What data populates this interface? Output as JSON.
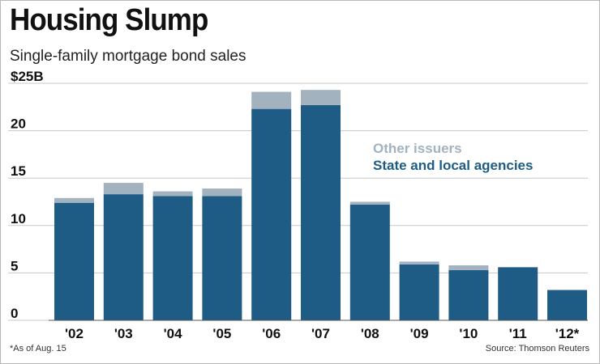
{
  "header": {
    "title": "Housing Slump",
    "subtitle": "Single-family mortgage bond sales"
  },
  "footer": {
    "footnote": "*As of Aug. 15",
    "source": "Source: Thomson Reuters"
  },
  "colors": {
    "state": "#1e5c86",
    "other": "#a2b2bf",
    "grid": "#c8c8c8",
    "text": "#111111"
  },
  "chart_data": {
    "type": "bar",
    "stacked": true,
    "title": "Housing Slump",
    "subtitle": "Single-family mortgage bond sales",
    "xlabel": "",
    "ylabel": "",
    "ylim": [
      0,
      25
    ],
    "yticks": [
      0,
      5,
      10,
      15,
      20,
      25
    ],
    "ytick_labels": [
      "0",
      "5",
      "10",
      "15",
      "20",
      "$25B"
    ],
    "grid": true,
    "legend_position": "center-right",
    "categories": [
      "'02",
      "'03",
      "'04",
      "'05",
      "'06",
      "'07",
      "'08",
      "'09",
      "'10",
      "'11",
      "'12*"
    ],
    "series": [
      {
        "name": "State and local agencies",
        "values": [
          12.4,
          13.3,
          13.1,
          13.1,
          22.3,
          22.7,
          12.2,
          5.9,
          5.3,
          5.6,
          3.2
        ]
      },
      {
        "name": "Other issuers",
        "values": [
          0.5,
          1.2,
          0.5,
          0.8,
          1.8,
          1.6,
          0.3,
          0.3,
          0.5,
          0.0,
          0.0
        ]
      }
    ]
  }
}
